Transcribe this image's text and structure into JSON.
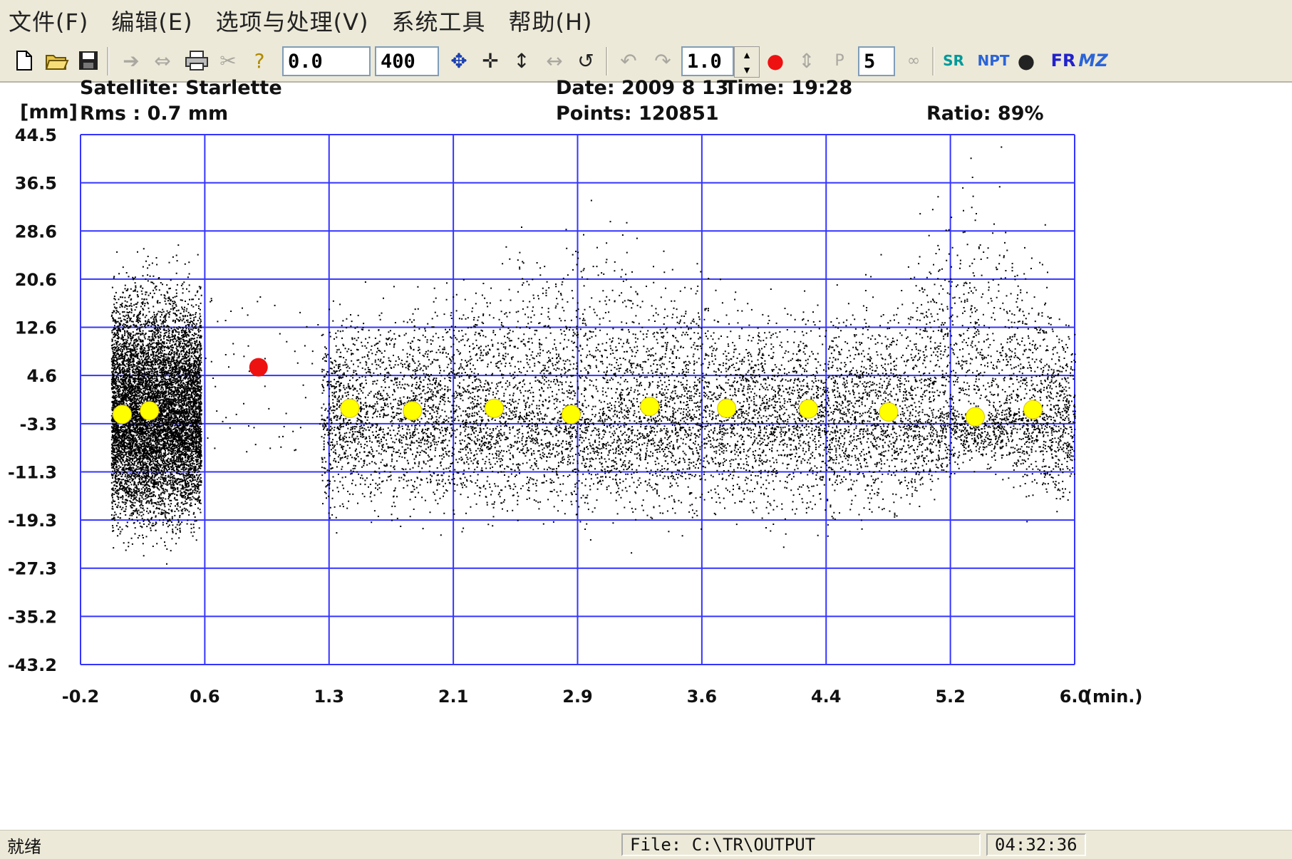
{
  "menu": [
    "文件(F)",
    "编辑(E)",
    "选项与处理(V)",
    "系统工具",
    "帮助(H)"
  ],
  "toolbar": {
    "start_value": "0.0",
    "end_value": "400",
    "scale_value": "1.0",
    "points_value": "5",
    "labels": {
      "fr": "FR",
      "mz": "MZ",
      "nptt": "NPT",
      "sr": "SR",
      "p": "P"
    }
  },
  "header": {
    "satellite": "Satellite: Starlette",
    "unit": "[mm]",
    "rms": "Rms :   0.7 mm",
    "date": "Date: 2009  8 13",
    "time": "Time: 19:28",
    "points": "Points: 120851",
    "ratio": "Ratio:  89%"
  },
  "status": {
    "left": "就绪",
    "file": "File: C:\\TR\\OUTPUT",
    "clock": "04:32:36"
  },
  "colors": {
    "grid": "#3434ff",
    "points": "#000000",
    "normal_points": "#ffff00",
    "selected_point": "#ee1111",
    "window_bg": "#ece9d8"
  },
  "chart_data": {
    "type": "scatter",
    "title": "",
    "xlabel": "(min.)",
    "ylabel": "[mm]",
    "xlim": [
      -0.2,
      6.0
    ],
    "ylim": [
      -43.2,
      44.5
    ],
    "x_ticks": [
      "-0.2",
      "0.6",
      "1.3",
      "2.1",
      "2.9",
      "3.6",
      "4.4",
      "5.2",
      "6.0"
    ],
    "y_ticks": [
      "44.5",
      "36.5",
      "28.6",
      "20.6",
      "12.6",
      "4.6",
      "-3.3",
      "-11.3",
      "-19.3",
      "-27.3",
      "-35.2",
      "-43.2"
    ],
    "grid": true,
    "series": [
      {
        "kind": "residual-cloud",
        "segments": [
          {
            "x_range": [
              -0.01,
              0.55
            ],
            "center": -1.5,
            "spread_top": 20,
            "spread_bottom": 18
          },
          {
            "x_range": [
              1.3,
              6.0
            ],
            "center": -1.5,
            "spread_top": 24,
            "spread_bottom": 18
          }
        ],
        "approx_count": 120851
      },
      {
        "kind": "normal-points",
        "x": [
          0.06,
          0.23,
          1.48,
          1.87,
          2.38,
          2.86,
          3.35,
          3.83,
          4.34,
          4.84,
          5.38,
          5.74
        ],
        "y": [
          -1.8,
          -1.2,
          -0.8,
          -1.2,
          -0.8,
          -1.8,
          -0.5,
          -0.8,
          -0.9,
          -1.4,
          -2.2,
          -1.0
        ]
      },
      {
        "kind": "selected-point",
        "x": [
          0.91
        ],
        "y": [
          6.0
        ]
      }
    ]
  }
}
